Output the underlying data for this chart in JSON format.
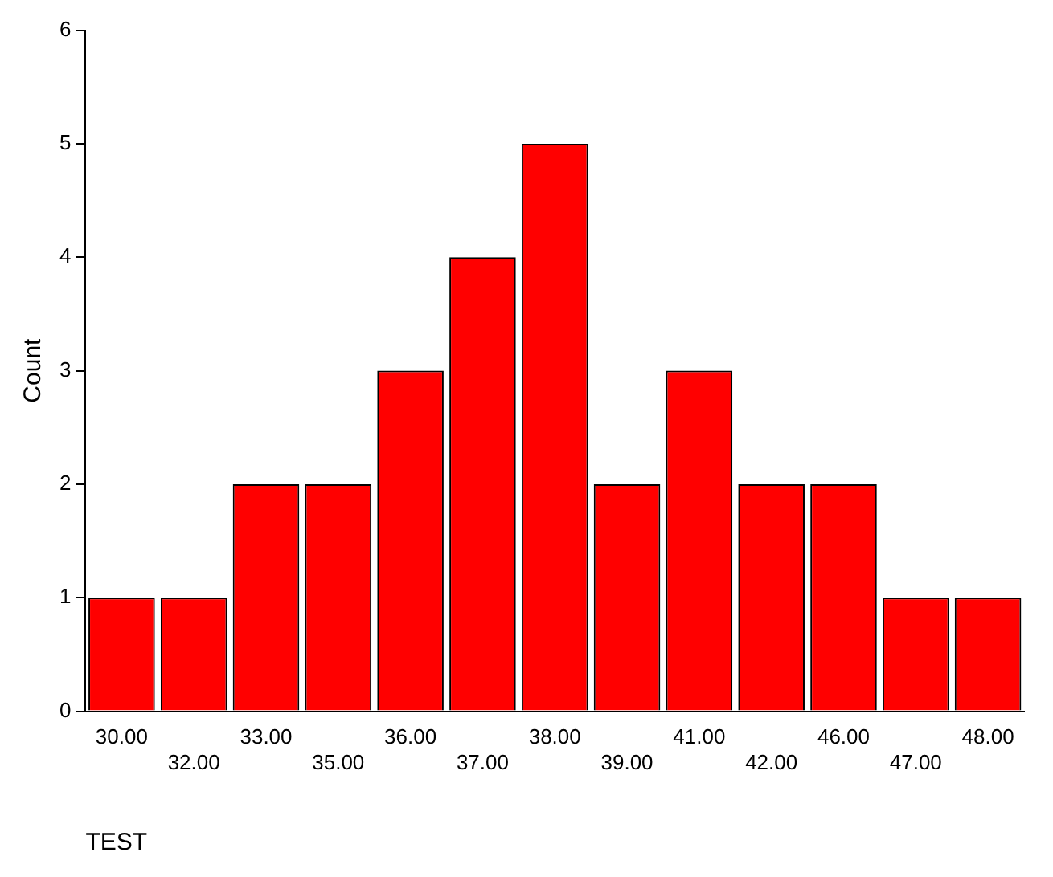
{
  "chart_data": {
    "type": "bar",
    "xlabel": "TEST",
    "ylabel": "Count",
    "categories": [
      "30.00",
      "32.00",
      "33.00",
      "35.00",
      "36.00",
      "37.00",
      "38.00",
      "39.00",
      "41.00",
      "42.00",
      "46.00",
      "47.00",
      "48.00"
    ],
    "values": [
      1,
      1,
      2,
      2,
      3,
      4,
      5,
      2,
      3,
      2,
      2,
      1,
      1
    ],
    "color": "#ff0000",
    "ylim": [
      0,
      6
    ],
    "yticks": [
      0,
      1,
      2,
      3,
      4,
      5,
      6
    ],
    "grid": false,
    "legend": false
  }
}
